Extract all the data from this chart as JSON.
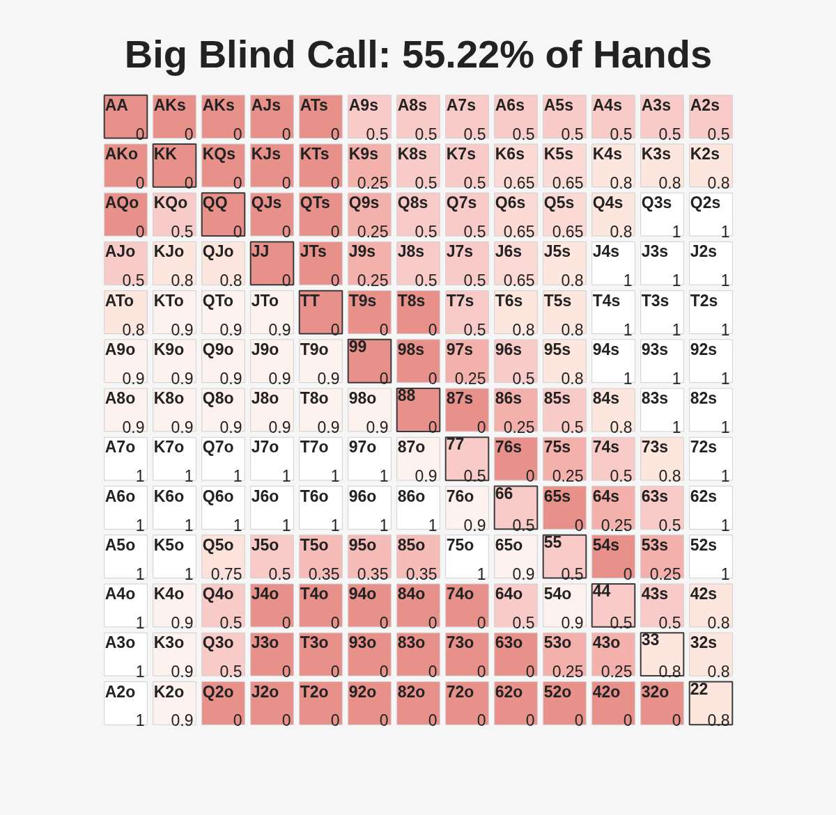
{
  "chart_data": {
    "type": "heatmap",
    "title": "Big Blind Call: 55.22% of Hands",
    "categories": [
      null,
      null,
      null,
      null,
      null,
      null,
      null,
      null,
      null,
      null,
      null,
      null,
      null
    ],
    "y_categories": [
      null,
      null,
      null,
      null,
      null,
      null,
      null,
      null,
      null,
      null,
      null,
      null,
      null
    ],
    "cells": [
      [
        0,
        0,
        0,
        0,
        0,
        0.5,
        0.5,
        0.5,
        0.5,
        0.5,
        0.5,
        0.5,
        0.5
      ],
      [
        0,
        0,
        0,
        0,
        0,
        0.25,
        0.5,
        0.5,
        0.65,
        0.65,
        0.8,
        0.8,
        0.8
      ],
      [
        0,
        0.5,
        0,
        0,
        0,
        0.25,
        0.5,
        0.5,
        0.65,
        0.65,
        0.8,
        1,
        1
      ],
      [
        0.5,
        0.8,
        0.8,
        0,
        0,
        0.25,
        0.5,
        0.5,
        0.65,
        0.8,
        1,
        1,
        1
      ],
      [
        0.8,
        0.9,
        0.9,
        0.9,
        0,
        0,
        0,
        0.5,
        0.8,
        0.8,
        1,
        1,
        1
      ],
      [
        0.9,
        0.9,
        0.9,
        0.9,
        0.9,
        0,
        0,
        0.25,
        0.5,
        0.8,
        1,
        1,
        1
      ],
      [
        0.9,
        0.9,
        0.9,
        0.9,
        0.9,
        0.9,
        0,
        0,
        0.25,
        0.5,
        0.8,
        1,
        1
      ],
      [
        1,
        1,
        1,
        1,
        1,
        1,
        0.9,
        0.5,
        0,
        0.25,
        0.5,
        0.8,
        1
      ],
      [
        1,
        1,
        1,
        1,
        1,
        1,
        1,
        0.9,
        0.5,
        0,
        0.25,
        0.5,
        1
      ],
      [
        1,
        1,
        0.75,
        0.5,
        0.35,
        0.35,
        0.35,
        1,
        0.9,
        0.5,
        0,
        0.25,
        1
      ],
      [
        1,
        0.9,
        0.5,
        0,
        0,
        0,
        0,
        0,
        0.5,
        0.9,
        0.5,
        0.5,
        0.8
      ],
      [
        1,
        0.9,
        0.5,
        0,
        0,
        0,
        0,
        0,
        0,
        0.25,
        0.25,
        0.8,
        0.8
      ],
      [
        1,
        0.9,
        0,
        0,
        0,
        0,
        0,
        0,
        0,
        0,
        0,
        0,
        0.8
      ]
    ],
    "data_labels": true,
    "annotations": [
      "AA",
      "AKs",
      "AKs",
      "AJs",
      "ATs",
      "A9s",
      "A8s",
      "A7s",
      "A6s",
      "A5s",
      "A4s",
      "A3s",
      "A2s",
      "AKo",
      "KK",
      "KQs",
      "KJs",
      "KTs",
      "K9s",
      "K8s",
      "K7s",
      "K6s",
      "K5s",
      "K4s",
      "K3s",
      "K2s",
      "AQo",
      "KQo",
      "QQ",
      "QJs",
      "QTs",
      "Q9s",
      "Q8s",
      "Q7s",
      "Q6s",
      "Q5s",
      "Q4s",
      "Q3s",
      "Q2s",
      "AJo",
      "KJo",
      "QJo",
      "JJ",
      "JTs",
      "J9s",
      "J8s",
      "J7s",
      "J6s",
      "J5s",
      "J4s",
      "J3s",
      "J2s",
      "ATo",
      "KTo",
      "QTo",
      "JTo",
      "TT",
      "T9s",
      "T8s",
      "T7s",
      "T6s",
      "T5s",
      "T4s",
      "T3s",
      "T2s",
      "A9o",
      "K9o",
      "Q9o",
      "J9o",
      "T9o",
      "99",
      "98s",
      "97s",
      "96s",
      "95s",
      "94s",
      "93s",
      "92s",
      "A8o",
      "K8o",
      "Q8o",
      "J8o",
      "T8o",
      "98o",
      "88",
      "87s",
      "86s",
      "85s",
      "84s",
      "83s",
      "82s",
      "A7o",
      "K7o",
      "Q7o",
      "J7o",
      "T7o",
      "97o",
      "87o",
      "77",
      "76s",
      "75s",
      "74s",
      "73s",
      "72s",
      "A6o",
      "K6o",
      "Q6o",
      "J6o",
      "T6o",
      "96o",
      "86o",
      "76o",
      "66",
      "65s",
      "64s",
      "63s",
      "62s",
      "A5o",
      "K5o",
      "Q5o",
      "J5o",
      "T5o",
      "95o",
      "85o",
      "75o",
      "65o",
      "55",
      "54s",
      "53s",
      "52s",
      "A4o",
      "K4o",
      "Q4o",
      "J4o",
      "T4o",
      "94o",
      "84o",
      "74o",
      "64o",
      "54o",
      "44",
      "43s",
      "42s",
      "A3o",
      "K3o",
      "Q3o",
      "J3o",
      "T3o",
      "93o",
      "83o",
      "73o",
      "63o",
      "53o",
      "43o",
      "33",
      "32s",
      "A2o",
      "K2o",
      "Q2o",
      "J2o",
      "T2o",
      "92o",
      "82o",
      "72o",
      "62o",
      "52o",
      "42o",
      "32o",
      "22"
    ]
  }
}
